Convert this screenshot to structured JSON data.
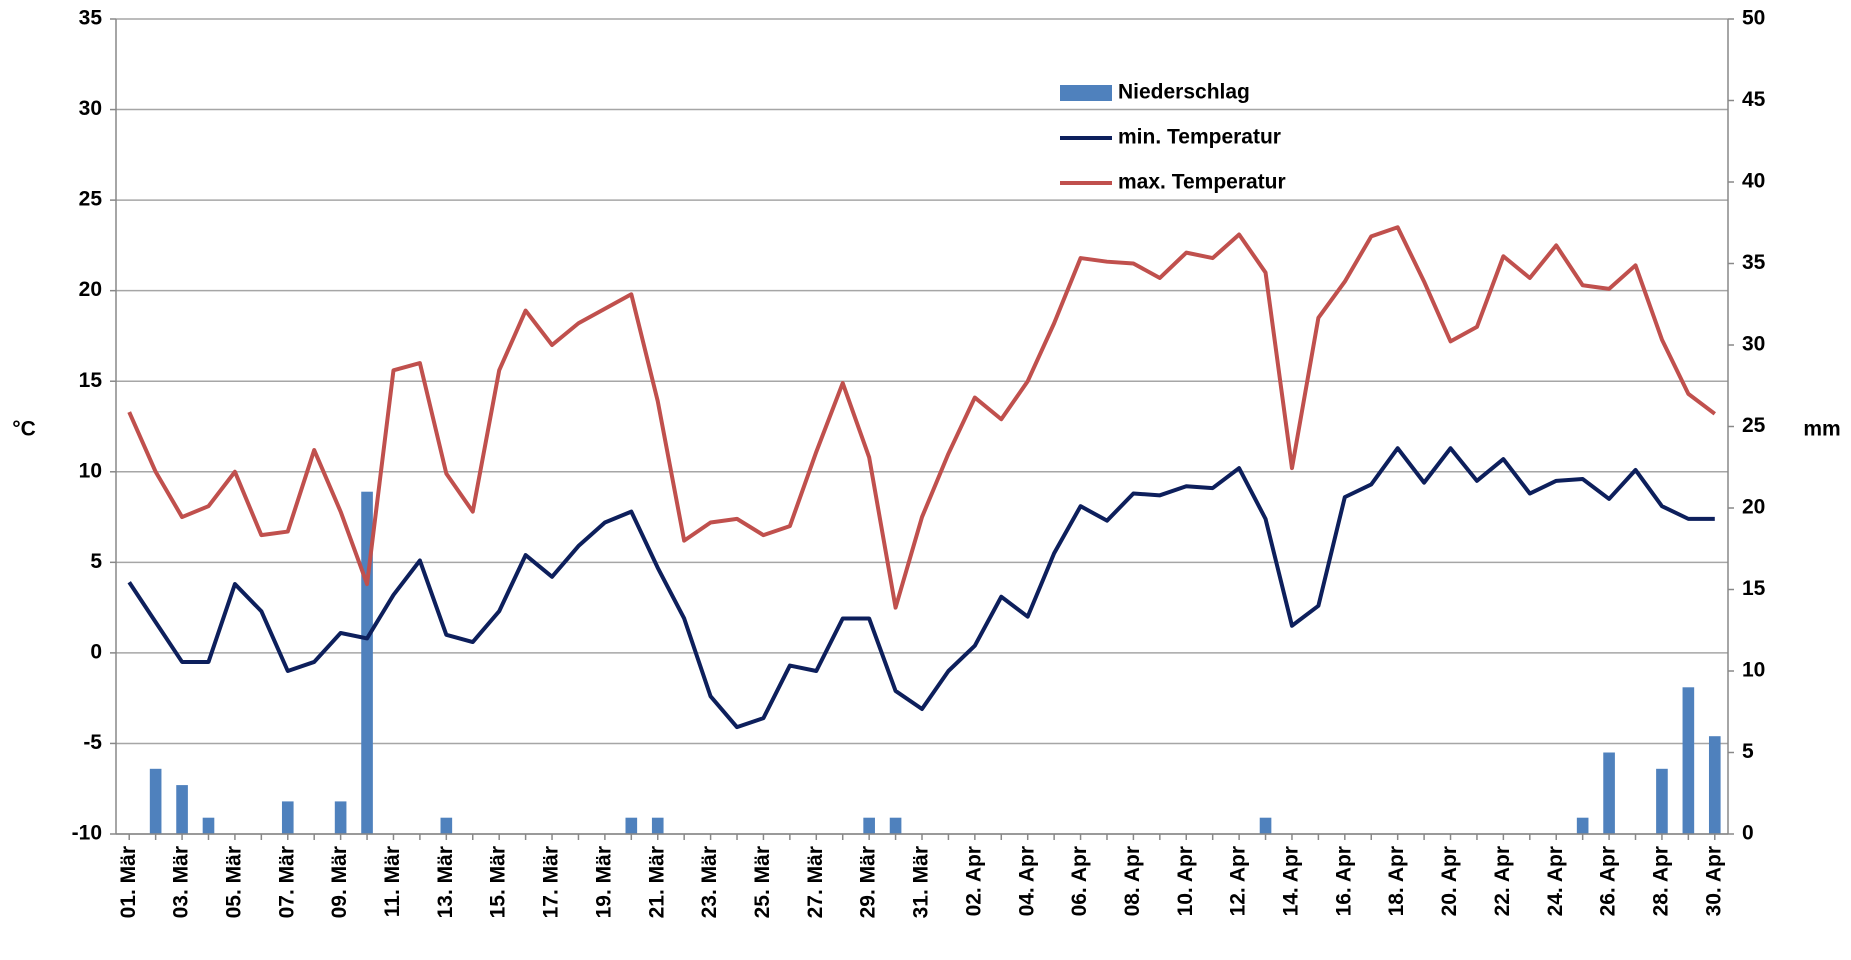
{
  "chart_data": {
    "type": "combo",
    "categories": [
      "01. Mär",
      null,
      "03. Mär",
      null,
      "05. Mär",
      null,
      "07. Mär",
      null,
      "09. Mär",
      null,
      "11. Mär",
      null,
      "13. Mär",
      null,
      "15. Mär",
      null,
      "17. Mär",
      null,
      "19. Mär",
      null,
      "21. Mär",
      null,
      "23. Mär",
      null,
      "25. Mär",
      null,
      "27. Mär",
      null,
      "29. Mär",
      null,
      "31. Mär",
      null,
      "02. Apr",
      null,
      "04. Apr",
      null,
      "06. Apr",
      null,
      "08. Apr",
      null,
      "10. Apr",
      null,
      "12. Apr",
      null,
      "14. Apr",
      null,
      "16. Apr",
      null,
      "18. Apr",
      null,
      "20. Apr",
      null,
      "22. Apr",
      null,
      "24. Apr",
      null,
      "26. Apr",
      null,
      "28. Apr",
      null,
      "30. Apr"
    ],
    "series": [
      {
        "name": "Niederschlag",
        "type": "bar",
        "axis": "y2",
        "color": "#4f81bd",
        "values": [
          0,
          4,
          3,
          1,
          0,
          0,
          2,
          0,
          2,
          21,
          0,
          0,
          1,
          0,
          0,
          0,
          0,
          0,
          0,
          1,
          1,
          0,
          0,
          0,
          0,
          0,
          0,
          0,
          1,
          1,
          0,
          0,
          0,
          0,
          0,
          0,
          0,
          0,
          0,
          0,
          0,
          0,
          0,
          1,
          0,
          0,
          0,
          0,
          0,
          0,
          0,
          0,
          0,
          0,
          0,
          1,
          5,
          0,
          4,
          9,
          6
        ]
      },
      {
        "name": "min. Temperatur",
        "type": "line",
        "color": "#0d1f5c",
        "values": [
          3.9,
          1.7,
          -0.5,
          -0.5,
          3.8,
          2.3,
          -1.0,
          -0.5,
          1.1,
          0.8,
          3.2,
          5.1,
          1.0,
          0.6,
          2.3,
          5.4,
          4.2,
          5.9,
          7.2,
          7.8,
          4.7,
          1.9,
          -2.4,
          -4.1,
          -3.6,
          -0.7,
          -1.0,
          1.9,
          1.9,
          -2.1,
          -3.1,
          -1.0,
          0.4,
          3.1,
          2.0,
          5.5,
          8.1,
          7.3,
          8.8,
          8.7,
          9.2,
          9.1,
          10.2,
          7.4,
          1.5,
          2.6,
          8.6,
          9.3,
          11.3,
          9.4,
          11.3,
          9.5,
          10.7,
          8.8,
          9.5,
          9.6,
          8.5,
          10.1,
          8.1,
          7.4,
          7.4
        ]
      },
      {
        "name": "max. Temperatur",
        "type": "line",
        "color": "#c0504d",
        "values": [
          13.3,
          10.0,
          7.5,
          8.1,
          10.0,
          6.5,
          6.7,
          11.2,
          7.8,
          3.8,
          15.6,
          16.0,
          9.9,
          7.8,
          15.6,
          18.9,
          17.0,
          18.2,
          19.0,
          19.8,
          13.9,
          6.2,
          7.2,
          7.4,
          6.5,
          7.0,
          11.1,
          14.9,
          10.8,
          2.5,
          7.5,
          11.0,
          14.1,
          12.9,
          15.0,
          18.2,
          21.8,
          21.6,
          21.5,
          20.7,
          22.1,
          21.8,
          23.1,
          21.0,
          10.2,
          18.5,
          20.5,
          23.0,
          23.5,
          20.5,
          17.2,
          18.0,
          21.9,
          20.7,
          22.5,
          20.3,
          20.1,
          21.4,
          17.3,
          14.3,
          13.2
        ]
      }
    ],
    "y_label": "°C",
    "y2_label": "mm",
    "ylim": [
      -10,
      35
    ],
    "yticks": [
      -10,
      -5,
      0,
      5,
      10,
      15,
      20,
      25,
      30,
      35
    ],
    "y2lim": [
      0,
      50
    ],
    "y2ticks": [
      0,
      5,
      10,
      15,
      20,
      25,
      30,
      35,
      40,
      45,
      50
    ],
    "grid": true,
    "legend": "top"
  }
}
